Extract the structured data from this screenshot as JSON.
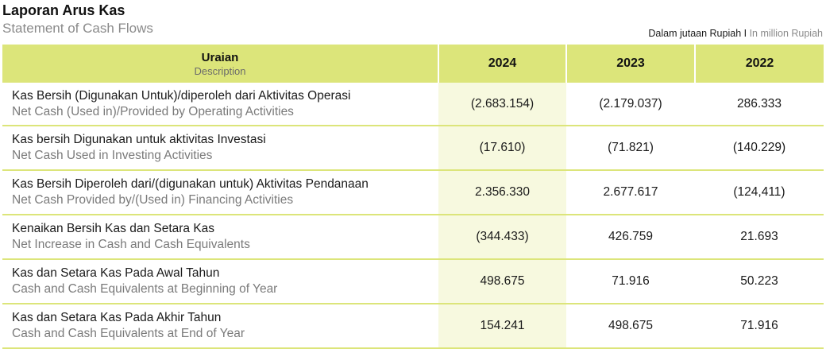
{
  "title": {
    "id": "Laporan Arus Kas",
    "en": "Statement of Cash Flows"
  },
  "unit": {
    "id": "Dalam jutaan Rupiah I",
    "en": "In million Rupiah"
  },
  "header": {
    "desc_id": "Uraian",
    "desc_en": "Description",
    "years": [
      "2024",
      "2023",
      "2022"
    ]
  },
  "rows": [
    {
      "id": "Kas Bersih (Digunakan Untuk)/diperoleh dari Aktivitas Operasi",
      "en": "Net Cash (Used in)/Provided by Operating Activities",
      "values": [
        "(2.683.154)",
        "(2.179.037)",
        "286.333"
      ]
    },
    {
      "id": "Kas bersih Digunakan untuk aktivitas Investasi",
      "en": "Net Cash Used in Investing Activities",
      "values": [
        "(17.610)",
        "(71.821)",
        "(140.229)"
      ]
    },
    {
      "id": "Kas Bersih Diperoleh dari/(digunakan untuk) Aktivitas Pendanaan",
      "en": "Net Cash Provided by/(Used in) Financing Activities",
      "values": [
        "2.356.330",
        "2.677.617",
        "(124,411)"
      ]
    },
    {
      "id": "Kenaikan Bersih Kas dan Setara Kas",
      "en": "Net Increase in Cash and Cash Equivalents",
      "values": [
        "(344.433)",
        "426.759",
        "21.693"
      ]
    },
    {
      "id": "Kas dan Setara Kas Pada Awal Tahun",
      "en": "Cash and Cash Equivalents at Beginning of Year",
      "values": [
        "498.675",
        "71.916",
        "50.223"
      ]
    },
    {
      "id": "Kas dan Setara Kas Pada Akhir Tahun",
      "en": "Cash and Cash Equivalents at End of Year",
      "values": [
        "154.241",
        "498.675",
        "71.916"
      ]
    }
  ],
  "colors": {
    "header_bg": "#dce57a",
    "highlight_col_bg": "#f7f9df",
    "secondary_text": "#7a7a7a"
  }
}
